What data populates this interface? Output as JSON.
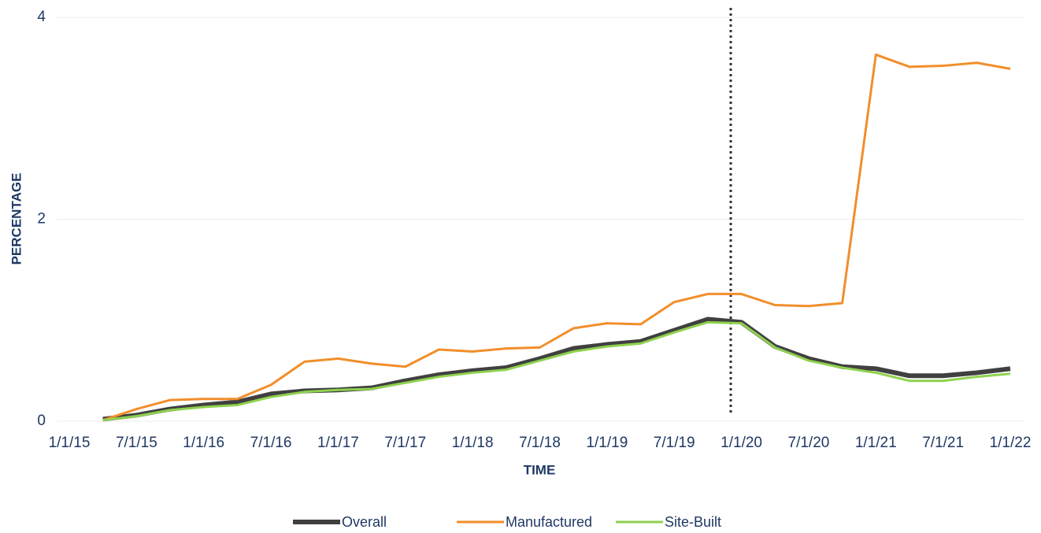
{
  "chart_data": {
    "type": "line",
    "x_label": "TIME",
    "y_label": "PERCENTAGE",
    "categories": [
      "1/1/15",
      null,
      "7/1/15",
      null,
      "1/1/16",
      null,
      "7/1/16",
      null,
      "1/1/17",
      null,
      "7/1/17",
      null,
      "1/1/18",
      null,
      "7/1/18",
      null,
      "1/1/19",
      null,
      "7/1/19",
      null,
      "1/1/20",
      null,
      "7/1/20",
      null,
      "1/1/21",
      null,
      "7/1/21",
      null,
      "1/1/22"
    ],
    "series": [
      {
        "name": "Overall",
        "color": "#404040",
        "values": [
          null,
          0.02,
          0.06,
          0.12,
          0.16,
          0.19,
          0.27,
          0.3,
          0.31,
          0.33,
          0.4,
          0.46,
          0.5,
          0.53,
          0.62,
          0.72,
          0.76,
          0.79,
          0.9,
          1.01,
          0.98,
          0.74,
          0.62,
          0.54,
          0.52,
          0.45,
          0.45,
          0.48,
          0.52
        ]
      },
      {
        "name": "Manufactured",
        "color": "#f28e2b",
        "values": [
          null,
          0.01,
          0.12,
          0.21,
          0.22,
          0.22,
          0.36,
          0.59,
          0.62,
          0.57,
          0.54,
          0.71,
          0.69,
          0.72,
          0.73,
          0.92,
          0.97,
          0.96,
          1.18,
          1.26,
          1.26,
          1.15,
          1.14,
          1.17,
          3.63,
          3.51,
          3.52,
          3.55,
          3.49
        ]
      },
      {
        "name": "Site-Built",
        "color": "#8fd14f",
        "values": [
          null,
          0.01,
          0.05,
          0.11,
          0.14,
          0.16,
          0.24,
          0.29,
          0.31,
          0.32,
          0.38,
          0.44,
          0.48,
          0.51,
          0.6,
          0.69,
          0.74,
          0.77,
          0.88,
          0.98,
          0.97,
          0.73,
          0.6,
          0.53,
          0.48,
          0.4,
          0.4,
          0.44,
          0.47
        ]
      }
    ],
    "ylim": [
      0,
      4
    ],
    "yticks": [
      0,
      2,
      4
    ],
    "grid": true,
    "legend": "bottom"
  }
}
